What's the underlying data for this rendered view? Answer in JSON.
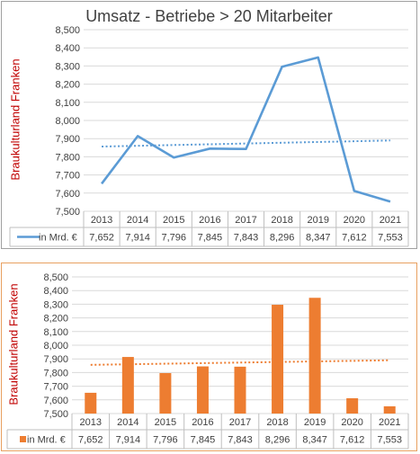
{
  "chart_data": [
    {
      "type": "line",
      "title": "Umsatz - Betriebe > 20 Mitarbeiter",
      "ylabel": "Braukulturland Franken",
      "ylim": [
        7500,
        8500
      ],
      "yticks": [
        "7,500",
        "7,600",
        "7,700",
        "7,800",
        "7,900",
        "8,000",
        "8,100",
        "8,200",
        "8,300",
        "8,400",
        "8,500"
      ],
      "categories": [
        "2013",
        "2014",
        "2015",
        "2016",
        "2017",
        "2018",
        "2019",
        "2020",
        "2021"
      ],
      "series": [
        {
          "name": "in Mrd. €",
          "values": [
            7652,
            7914,
            7796,
            7845,
            7843,
            8296,
            8347,
            7612,
            7553
          ],
          "labels": [
            "7,652",
            "7,914",
            "7,796",
            "7,845",
            "7,843",
            "8,296",
            "8,347",
            "7,612",
            "7,553"
          ]
        }
      ],
      "trendline": {
        "type": "linear",
        "style": "dotted"
      },
      "gridlines": true,
      "data_table": true,
      "colors": {
        "series": "#5b9bd5",
        "axis_label": "#c00000",
        "border": "#a0a0a0"
      }
    },
    {
      "type": "bar",
      "title": "",
      "ylabel": "Braukulturland Franken",
      "ylim": [
        7500,
        8500
      ],
      "yticks": [
        "7,500",
        "7,600",
        "7,700",
        "7,800",
        "7,900",
        "8,000",
        "8,100",
        "8,200",
        "8,300",
        "8,400",
        "8,500"
      ],
      "categories": [
        "2013",
        "2014",
        "2015",
        "2016",
        "2017",
        "2018",
        "2019",
        "2020",
        "2021"
      ],
      "series": [
        {
          "name": "in Mrd. €",
          "values": [
            7652,
            7914,
            7796,
            7845,
            7843,
            8296,
            8347,
            7612,
            7553
          ],
          "labels": [
            "7,652",
            "7,914",
            "7,796",
            "7,845",
            "7,843",
            "8,296",
            "8,347",
            "7,612",
            "7,553"
          ]
        }
      ],
      "trendline": {
        "type": "linear",
        "style": "dotted"
      },
      "gridlines": true,
      "data_table": true,
      "colors": {
        "series": "#ed7d31",
        "axis_label": "#c00000",
        "border": "#e8a060"
      }
    }
  ]
}
